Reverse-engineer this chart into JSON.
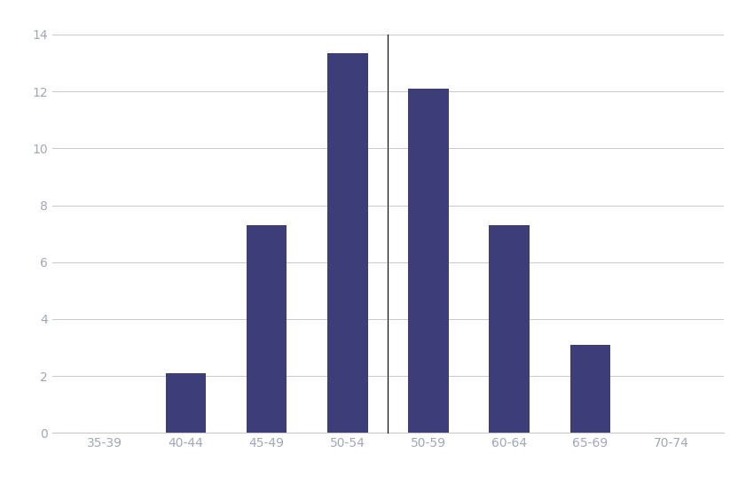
{
  "categories": [
    "35-39",
    "40-44",
    "45-49",
    "50-54",
    "50-59",
    "60-64",
    "65-69",
    "70-74"
  ],
  "values": [
    0,
    2.1,
    7.3,
    13.35,
    12.1,
    7.3,
    3.1,
    0
  ],
  "bar_color": "#3d3d7a",
  "background_color": "#ffffff",
  "ylim": [
    0,
    14
  ],
  "yticks": [
    0,
    2,
    4,
    6,
    8,
    10,
    12,
    14
  ],
  "grid_color": "#c8c8c8",
  "vline_color": "#000000",
  "bar_width": 0.5,
  "fig_width": 8.41,
  "fig_height": 5.55,
  "tick_color": "#a0a8b8",
  "tick_fontsize": 10
}
